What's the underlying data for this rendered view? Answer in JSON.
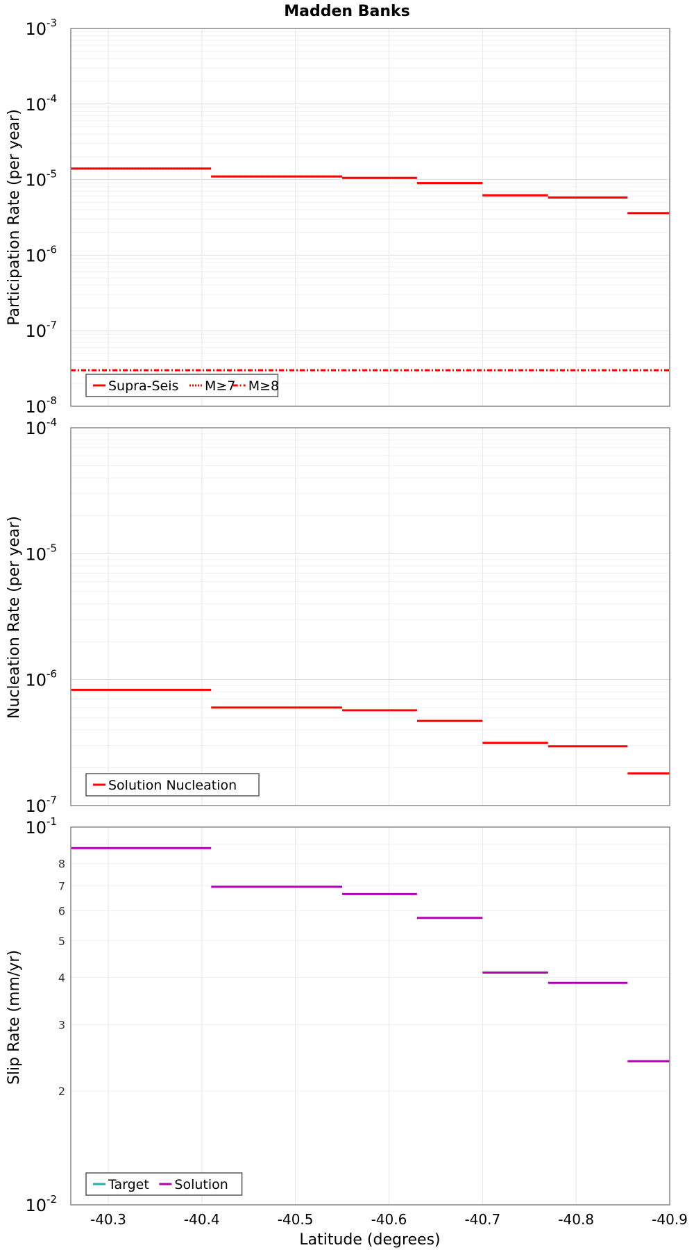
{
  "chart_data": [
    {
      "type": "line",
      "title": "Madden Banks",
      "ylabel": "Participation Rate (per year)",
      "xlabel": "",
      "yscale": "log",
      "ylim_exp": [
        -8,
        -3
      ],
      "ytick_exps": [
        -8,
        -7,
        -6,
        -5,
        -4,
        -3
      ],
      "xlim": [
        -40.26,
        -40.9
      ],
      "xticks": [
        "-40.3",
        "-40.4",
        "-40.5",
        "-40.6",
        "-40.7",
        "-40.8",
        "-40.9"
      ],
      "legend": "bottom-left",
      "series": [
        {
          "name": "Supra-Seis",
          "color": "#ff0000",
          "style": "solid",
          "segments": [
            {
              "x0": -40.26,
              "x1": -40.41,
              "y": 1.4e-05
            },
            {
              "x0": -40.41,
              "x1": -40.55,
              "y": 1.1e-05
            },
            {
              "x0": -40.55,
              "x1": -40.63,
              "y": 1.05e-05
            },
            {
              "x0": -40.63,
              "x1": -40.7,
              "y": 9e-06
            },
            {
              "x0": -40.7,
              "x1": -40.77,
              "y": 6.2e-06
            },
            {
              "x0": -40.77,
              "x1": -40.855,
              "y": 5.8e-06
            },
            {
              "x0": -40.855,
              "x1": -40.9,
              "y": 3.6e-06
            }
          ]
        },
        {
          "name": "M≥7",
          "color": "#ff0000",
          "style": "dotted",
          "segments": [
            {
              "x0": -40.26,
              "x1": -40.41,
              "y": 1.4e-05
            },
            {
              "x0": -40.41,
              "x1": -40.55,
              "y": 1.1e-05
            },
            {
              "x0": -40.55,
              "x1": -40.63,
              "y": 1.05e-05
            },
            {
              "x0": -40.63,
              "x1": -40.7,
              "y": 9e-06
            },
            {
              "x0": -40.7,
              "x1": -40.77,
              "y": 6.2e-06
            },
            {
              "x0": -40.77,
              "x1": -40.855,
              "y": 5.8e-06
            },
            {
              "x0": -40.855,
              "x1": -40.9,
              "y": 3.6e-06
            }
          ]
        },
        {
          "name": "M≥8",
          "color": "#ff0000",
          "style": "dashdot",
          "segments": [
            {
              "x0": -40.26,
              "x1": -40.9,
              "y": 3e-08
            }
          ]
        }
      ]
    },
    {
      "type": "line",
      "ylabel": "Nucleation Rate (per year)",
      "xlabel": "",
      "yscale": "log",
      "ylim_exp": [
        -7,
        -4
      ],
      "ytick_exps": [
        -7,
        -6,
        -5,
        -4
      ],
      "xlim": [
        -40.26,
        -40.9
      ],
      "legend": "bottom-left",
      "series": [
        {
          "name": "Solution Nucleation",
          "color": "#ff0000",
          "style": "solid",
          "segments": [
            {
              "x0": -40.26,
              "x1": -40.41,
              "y": 8.3e-07
            },
            {
              "x0": -40.41,
              "x1": -40.55,
              "y": 6e-07
            },
            {
              "x0": -40.55,
              "x1": -40.63,
              "y": 5.7e-07
            },
            {
              "x0": -40.63,
              "x1": -40.7,
              "y": 4.7e-07
            },
            {
              "x0": -40.7,
              "x1": -40.77,
              "y": 3.15e-07
            },
            {
              "x0": -40.77,
              "x1": -40.855,
              "y": 2.95e-07
            },
            {
              "x0": -40.855,
              "x1": -40.9,
              "y": 1.8e-07
            }
          ]
        }
      ]
    },
    {
      "type": "line",
      "ylabel": "Slip Rate (mm/yr)",
      "xlabel": "Latitude (degrees)",
      "yscale": "log",
      "ylim_exp": [
        -2,
        -1
      ],
      "ytick_exps": [
        -2,
        -1
      ],
      "minor_tick_labels": [
        "2",
        "3",
        "4",
        "5",
        "6",
        "7",
        "8"
      ],
      "xlim": [
        -40.26,
        -40.9
      ],
      "xticks": [
        "-40.3",
        "-40.4",
        "-40.5",
        "-40.6",
        "-40.7",
        "-40.8",
        "-40.9"
      ],
      "legend": "bottom-left",
      "series": [
        {
          "name": "Target",
          "color": "#20b2aa",
          "style": "solid",
          "segments": []
        },
        {
          "name": "Solution",
          "color": "#b000b0",
          "style": "solid",
          "segments": [
            {
              "x0": -40.26,
              "x1": -40.41,
              "y": 0.088
            },
            {
              "x0": -40.41,
              "x1": -40.55,
              "y": 0.0695
            },
            {
              "x0": -40.55,
              "x1": -40.63,
              "y": 0.0665
            },
            {
              "x0": -40.63,
              "x1": -40.7,
              "y": 0.0575
            },
            {
              "x0": -40.7,
              "x1": -40.77,
              "y": 0.0412
            },
            {
              "x0": -40.77,
              "x1": -40.855,
              "y": 0.0387
            },
            {
              "x0": -40.855,
              "x1": -40.9,
              "y": 0.024
            }
          ]
        }
      ]
    }
  ]
}
